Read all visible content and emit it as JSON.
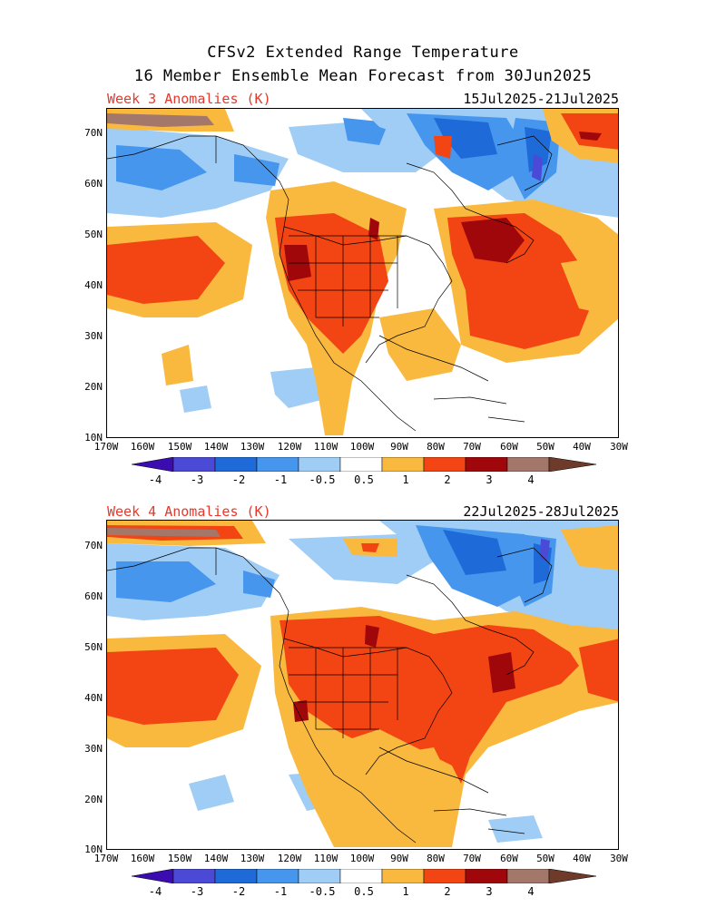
{
  "header": {
    "title_line1": "CFSv2 Extended Range Temperature",
    "title_line2": "16 Member Ensemble Mean Forecast from 30Jun2025"
  },
  "panels": [
    {
      "label": "Week 3 Anomalies (K)",
      "dates": "15Jul2025-21Jul2025"
    },
    {
      "label": "Week 4 Anomalies (K)",
      "dates": "22Jul2025-28Jul2025"
    }
  ],
  "axes": {
    "lat_labels": [
      "70N",
      "60N",
      "50N",
      "40N",
      "30N",
      "20N",
      "10N"
    ],
    "lon_labels": [
      "170W",
      "160W",
      "150W",
      "140W",
      "130W",
      "120W",
      "110W",
      "100W",
      "90W",
      "80W",
      "70W",
      "60W",
      "50W",
      "40W",
      "30W"
    ]
  },
  "colorbar": {
    "labels": [
      "-4",
      "-3",
      "-2",
      "-1",
      "-0.5",
      "0.5",
      "1",
      "2",
      "3",
      "4"
    ],
    "colors": [
      "#3b0db0",
      "#4a4ad6",
      "#1e6ad8",
      "#4696ee",
      "#9fcdf5",
      "#ffffff",
      "#f9b93f",
      "#f24513",
      "#a0070a",
      "#a3776a",
      "#6e3b2b"
    ]
  },
  "palette": {
    "warm1": "#f9b93f",
    "warm2": "#f24513",
    "warm3": "#a0070a",
    "warm4": "#a3776a",
    "cool1": "#9fcdf5",
    "cool2": "#4696ee",
    "cool3": "#1e6ad8",
    "cool4": "#4a4ad6",
    "label_red": "#e8372a"
  }
}
